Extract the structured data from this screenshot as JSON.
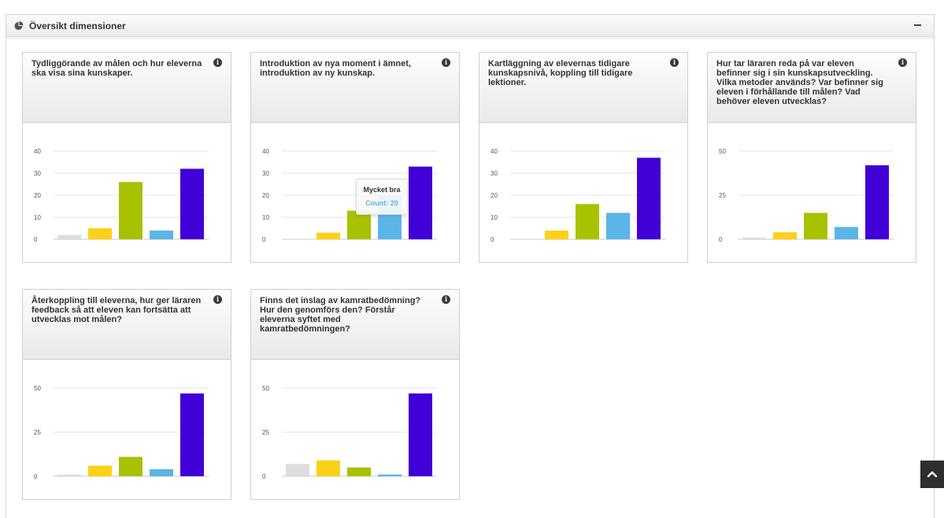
{
  "panel": {
    "title": "Översikt dimensioner",
    "icon": "pie-chart-icon",
    "collapse_icon": "minus-icon"
  },
  "colors": [
    "#dddddd",
    "#fcd118",
    "#a8c100",
    "#5bb5e6",
    "#4100d6"
  ],
  "chart_data": [
    {
      "type": "bar",
      "title": "Tydliggörande av målen och hur eleverna ska visa sina kunskaper.",
      "ylim": [
        0,
        40
      ],
      "yticks": [
        0,
        10,
        20,
        30,
        40
      ],
      "values": [
        2,
        5,
        26,
        4,
        32
      ]
    },
    {
      "type": "bar",
      "title": "Introduktion av nya moment i ämnet, introduktion av ny kunskap.",
      "ylim": [
        0,
        40
      ],
      "yticks": [
        0,
        10,
        20,
        30,
        40
      ],
      "values": [
        0,
        3,
        13,
        20,
        33
      ],
      "tooltip": {
        "index": 3,
        "label": "Mycket bra",
        "count": "Count: 20"
      }
    },
    {
      "type": "bar",
      "title": "Kartläggning av elevernas tidigare kunskapsnivå, koppling till tidigare lektioner.",
      "ylim": [
        0,
        40
      ],
      "yticks": [
        0,
        10,
        20,
        30,
        40
      ],
      "values": [
        0,
        4,
        16,
        12,
        37
      ]
    },
    {
      "type": "bar",
      "title": "Hur tar läraren reda på var eleven befinner sig i sin kunskapsutveckling. Vilka metoder används? Var befinner sig eleven i förhållande till målen? Vad behöver eleven utvecklas?",
      "ylim": [
        0,
        50
      ],
      "yticks": [
        0,
        25,
        50
      ],
      "values": [
        1,
        4,
        15,
        7,
        42
      ]
    },
    {
      "type": "bar",
      "title": "Återkoppling till eleverna, hur ger läraren feedback så att eleven kan fortsätta att utvecklas mot målen?",
      "ylim": [
        0,
        50
      ],
      "yticks": [
        0,
        25,
        50
      ],
      "values": [
        1,
        6,
        11,
        4,
        47
      ]
    },
    {
      "type": "bar",
      "title": "Finns det inslag av kamratbedömning? Hur den genomförs den? Förstår eleverna syftet med kamratbedömningen?",
      "ylim": [
        0,
        50
      ],
      "yticks": [
        0,
        25,
        50
      ],
      "values": [
        7,
        9,
        5,
        1,
        47
      ]
    }
  ]
}
